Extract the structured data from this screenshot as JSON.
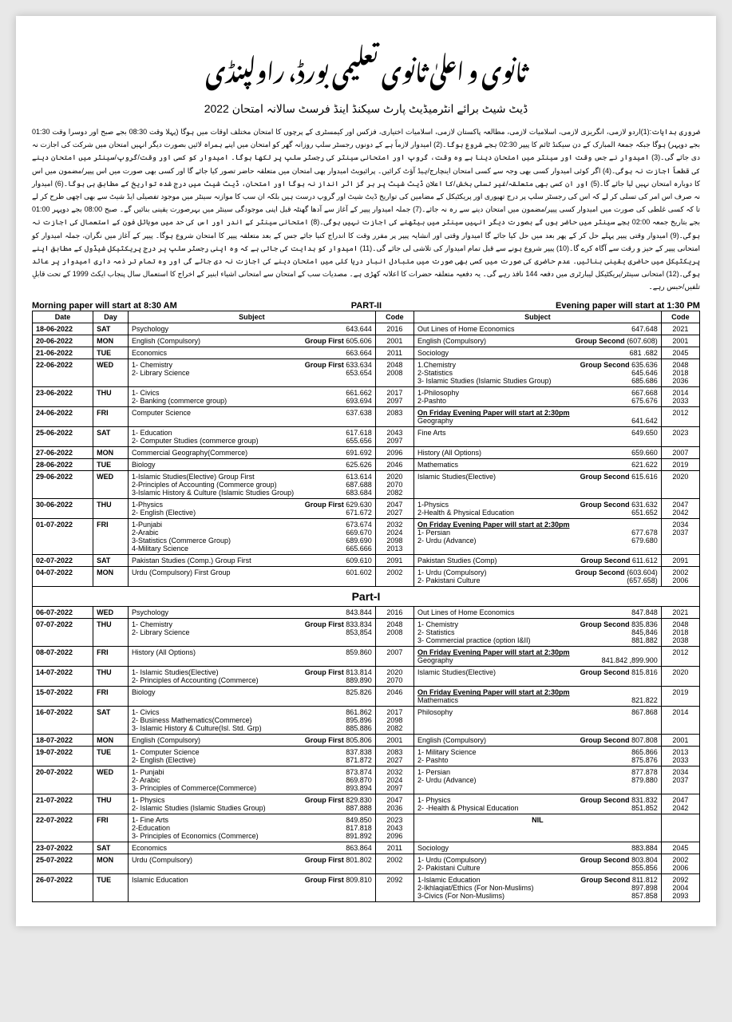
{
  "header": {
    "title_urdu": "ثانوی و اعلیٰ ثانوی تعلیمی بورڈ، راولپنڈی",
    "subtitle_urdu": "ڈیٹ شیٹ برائے انٹرمیڈیٹ پارٹ سیکنڈ اینڈ فرسٹ سالانہ امتحان 2022",
    "instructions_urdu": "ضروری ہدایات:(1)اردو لازمی، انگریزی لازمی، اسلامیات لازمی، مطالعہ پاکستان لازمی، اسلامیات اختیاری، فزکس اور کیمسٹری کے پرچوں کا امتحان مختلف اوقات میں ہوگا (پہلا وقت 08:30 بجے صبح اور دوسرا وقت 01:30 بجے دوپہر) ہوگا جبکہ جمعۃ المبارک کے دن سیکنڈ ٹائم کا پیپر 02:30 بجے شروع ہوگا۔(2) امیدوار لازماً ہے کے دونوں رجسٹر سلپ روزانہ گھر کو امتحان میں اپنے ہمراہ لائیں بصورت دیگر انہیں امتحان میں شرکت کی اجازت نہ دی جائے گی۔(3) امیدوار نے جس وقت اور سینٹر میں امتحان دینا ہے وہ وقت، گروپ اور امتحانی سینٹر کی رجسٹر سلپ پر لکھا ہوگا۔ امیدوار کو کسی اور وقت/گروپ/سینٹر میں امتحان دینے کی قطعاً اجازت نہ ہوگی۔(4) اگر کوئی امیدوار کسی بھی وجہ سے کسی امتحان اینچارج/ہیڈ آؤٹ کرائیں۔ پرائیویٹ امیدوار بھی امتحان میں متعلقہ حاضر تصور کیا جائے گا اور کسی بھی صورت میں اس پیپر/مضمون میں اس کا دوبارہ امتحان نہیں لیا جائے گا۔(5) اور ان کسی بھی متعلقہ/غیر تسلی بخش/کا اعلان ڈیٹ شیٹ پر ہر گز اثر انداز نہ ہوگا اور امتحان، ڈیٹ شیٹ میں درج شدہ تواریخ کے مطابق ہی ہوگا۔(6) امیدوار نہ صرف اس امر کی تسلی کر لے کہ اس کی رجسٹر سلپ پر درج تھیوری اور پریکٹیکل کے مضامین کی تواریخ ڈیٹ شیٹ اور گروپ درست ہیں بلکہ ان سب کا موازنہ سینٹر میں موجود تفصیلی ایڈ شیٹ سے بھی اچھی طرح کر لے تا کہ کسی غلطی کی صورت میں امیدوار کسی پیپر/مضمون میں امتحان دینے سے رہ نہ جائے۔(7) جملہ امیدوار پیپر کے آغاز سے آدھا گھنٹہ قبل اپنی موجودگی سینٹر میں بہرصورت یقینی بنائیں گے۔ صبح 08:00 بجے دوپہر 01:00 بجے بتاریخ جمعہ 02:00 بجے سینٹر میں حاضر ہوں گے بصورت دیگر انہیں سینٹر میں بیٹھنے کی اجازت نہیں ہوگی۔(8) امتحانی سینٹر کے اندر اور اس کی حد میں موبائل فون کے استعمال کی اجازت نہ ہوگی۔(9) امیدوار وقتی پیپر پہلے حل کر کے پھر بعد میں حل کیا جائے گا امیدوار وقتی اور انشایہ پیپر پر مقرر وقت کا اندراج کنیا جائے جس کے بعد متعلقہ پیپر کا امتحان شروع ہوگا۔ پیپر کے آغاز میں نگران، جملہ امیدوار کو امتحانی پیپر کے حیز و رقت سے آگاہ کرے گا۔(10) پیپر شروع ہونے سے قبل تمام امیدوار کی تلاشی لی جائے گی۔(11) امیدوار کو ہدایت کی جاتی ہے کہ وہ اپنی رجسٹر سلپ پر درج پریکٹیکل شیڈول کے مطابق اپنے پریکٹیکل میں حاضری یقینی بنائیں۔ عدم حاضری کی صورت میں کسی بھی صورت میں متبادل انبار دریا کئی میں امتحان دینے کی اجازت نہ دی جائے گی اور وہ تمام تر ذمہ داری امیدوار پر عائد ہوگی۔(12) امتحانی سینٹر/پریکٹیکل لیبارٹری میں دفعہ 144 نافذ رہے گی۔ یہ دفعیہ متعلقہ حضرات کا اعلانہ کھڑی ہے۔ مصدیات سب کے امتحان سے امتحانی اشیاء ابنیر کے اخراج کا استعمال سال پنجاب ایکٹ 1999 کے تحت قابلِ تلفیں/حبس رہے۔",
    "morning": "Morning paper will start at 8:30 AM",
    "part2": "PART-II",
    "evening": "Evening paper will start at 1:30 PM"
  },
  "cols": {
    "date": "Date",
    "day": "Day",
    "subject": "Subject",
    "code": "Code"
  },
  "part1_label": "Part-I",
  "rows_p2": [
    {
      "date": "18-06-2022",
      "day": "SAT",
      "m": [
        {
          "s": "Psychology",
          "c": "643.644"
        }
      ],
      "mc": [
        "2016"
      ],
      "e": [
        {
          "s": "Out Lines of Home Economics",
          "c": "647.648"
        }
      ],
      "ec": [
        "2021"
      ]
    },
    {
      "date": "20-06-2022",
      "day": "MON",
      "m": [
        {
          "s": "English (Compulsory)",
          "g": "Group First",
          "c": "605.606"
        }
      ],
      "mc": [
        "2001"
      ],
      "e": [
        {
          "s": "English (Compulsory)",
          "g": "Group Second",
          "c": "(607.608)"
        }
      ],
      "ec": [
        "2001"
      ]
    },
    {
      "date": "21-06-2022",
      "day": "TUE",
      "m": [
        {
          "s": "Economics",
          "c": "663.664"
        }
      ],
      "mc": [
        "2011"
      ],
      "e": [
        {
          "s": "Sociology",
          "c": "681 .682"
        }
      ],
      "ec": [
        "2045"
      ]
    },
    {
      "date": "22-06-2022",
      "day": "WED",
      "m": [
        {
          "s": "1- Chemistry",
          "g": "Group First",
          "c": "633.634"
        },
        {
          "s": "2- Library Science",
          "c": "653.654"
        }
      ],
      "mc": [
        "2048",
        "2008"
      ],
      "e": [
        {
          "s": "1.Chemistry",
          "g": "Group Second",
          "c": "635.636"
        },
        {
          "s": "2-Statistics",
          "c": "645.646"
        },
        {
          "s": "3- Islamic Studies (Islamic Studies Group)",
          "c": "685.686"
        }
      ],
      "ec": [
        "2048",
        "2018",
        "2036"
      ]
    },
    {
      "date": "23-06-2022",
      "day": "THU",
      "m": [
        {
          "s": "1- Civics",
          "c": "661.662"
        },
        {
          "s": "2- Banking  (commerce group)",
          "c": "693.694"
        }
      ],
      "mc": [
        "2017",
        "2097"
      ],
      "e": [
        {
          "s": "1-Philosophy",
          "c": "667.668"
        },
        {
          "s": "2-Pashto",
          "c": "675.676"
        }
      ],
      "ec": [
        "2014",
        "2033"
      ]
    },
    {
      "date": "24-06-2022",
      "day": "FRI",
      "m": [
        {
          "s": "Computer Science",
          "c": "637.638"
        }
      ],
      "mc": [
        "2083"
      ],
      "e": [
        {
          "u": "On Friday Evening Paper will start at 2:30pm"
        },
        {
          "s": "Geography",
          "c": "641.642"
        }
      ],
      "ec": [
        "2012"
      ]
    },
    {
      "date": "25-06-2022",
      "day": "SAT",
      "m": [
        {
          "s": "1- Education",
          "c": "617.618"
        },
        {
          "s": "2- Computer Studies (commerce group)",
          "c": "655.656"
        }
      ],
      "mc": [
        "2043",
        "2097"
      ],
      "e": [
        {
          "s": "Fine Arts",
          "c": "649.650"
        }
      ],
      "ec": [
        "2023"
      ]
    },
    {
      "date": "27-06-2022",
      "day": "MON",
      "m": [
        {
          "s": "Commercial Geography(Commerce)",
          "c": "691.692"
        }
      ],
      "mc": [
        "2096"
      ],
      "e": [
        {
          "s": "History (All Options)",
          "c": "659.660"
        }
      ],
      "ec": [
        "2007"
      ]
    },
    {
      "date": "28-06-2022",
      "day": "TUE",
      "m": [
        {
          "s": "Biology",
          "c": "625.626"
        }
      ],
      "mc": [
        "2046"
      ],
      "e": [
        {
          "s": "Mathematics",
          "c": "621.622"
        }
      ],
      "ec": [
        "2019"
      ]
    },
    {
      "date": "29-06-2022",
      "day": "WED",
      "m": [
        {
          "s": "1-Islamic Studies(Elective)  Group First",
          "c": "613.614"
        },
        {
          "s": "2-Principles of Accounting (Commerce group)",
          "c": "687.688"
        },
        {
          "s": "3-Islamic History & Culture (Islamic Studies Group)",
          "c": "683.684"
        }
      ],
      "mc": [
        "2020",
        "2070",
        "2082"
      ],
      "e": [
        {
          "s": "Islamic Studies(Elective)",
          "g": "Group Second",
          "c": "615.616"
        }
      ],
      "ec": [
        "2020"
      ]
    },
    {
      "date": "30-06-2022",
      "day": "THU",
      "m": [
        {
          "s": "1-Physics",
          "g": "Group First",
          "c": "629.630"
        },
        {
          "s": "2- English (Elective)",
          "c": "671.672"
        }
      ],
      "mc": [
        "2047",
        "2027"
      ],
      "e": [
        {
          "s": "1-Physics",
          "g": "Group Second",
          "c": "631.632"
        },
        {
          "s": "2-Health & Physical Education",
          "c": "651.652"
        }
      ],
      "ec": [
        "2047",
        "2042"
      ]
    },
    {
      "date": "01-07-2022",
      "day": "FRI",
      "m": [
        {
          "s": "1-Punjabi",
          "c": "673.674"
        },
        {
          "s": "2-Arabic",
          "c": "669.670"
        },
        {
          "s": "3-Statistics       (Commerce Group)",
          "c": "689.690"
        },
        {
          "s": "4-Military Science",
          "c": "665.666"
        }
      ],
      "mc": [
        "2032",
        "2024",
        "2098",
        "2013"
      ],
      "e": [
        {
          "u": "On Friday Evening Paper will start at 2:30pm"
        },
        {
          "s": "1- Persian",
          "c": "677.678"
        },
        {
          "s": "2- Urdu (Advance)",
          "c": "679.680"
        }
      ],
      "ec": [
        "2034",
        "2037"
      ]
    },
    {
      "date": "02-07-2022",
      "day": "SAT",
      "m": [
        {
          "s": "Pakistan Studies (Comp.)   Group First",
          "c": "609.610"
        }
      ],
      "mc": [
        "2091"
      ],
      "e": [
        {
          "s": "Pakistan Studies (Comp)",
          "g": "Group Second",
          "c": "611.612"
        }
      ],
      "ec": [
        "2091"
      ]
    },
    {
      "date": "04-07-2022",
      "day": "MON",
      "m": [
        {
          "s": "Urdu (Compulsory)   First Group",
          "c": "601.602"
        }
      ],
      "mc": [
        "2002"
      ],
      "e": [
        {
          "s": "1- Urdu (Compulsory)",
          "g": "Group Second",
          "c": "(603.604)"
        },
        {
          "s": "2- Pakistani Culture",
          "c": "(657.658)"
        }
      ],
      "ec": [
        "2002",
        "2006"
      ]
    }
  ],
  "rows_p1": [
    {
      "date": "06-07-2022",
      "day": "WED",
      "m": [
        {
          "s": "Psychology",
          "c": "843.844"
        }
      ],
      "mc": [
        "2016"
      ],
      "e": [
        {
          "s": "Out Lines of Home Economics",
          "c": "847.848"
        }
      ],
      "ec": [
        "2021"
      ]
    },
    {
      "date": "07-07-2022",
      "day": "THU",
      "m": [
        {
          "s": "1- Chemistry",
          "g": "Group First",
          "c": "833.834"
        },
        {
          "s": "2- Library Science",
          "c": "853,854"
        }
      ],
      "mc": [
        "2048",
        "2008"
      ],
      "e": [
        {
          "s": "1- Chemistry",
          "g": "Group Second",
          "c": "835.836"
        },
        {
          "s": "2- Statistics",
          "c": "845,846"
        },
        {
          "s": "3- Commercial practice  (option  I&II)",
          "c": "881.882"
        }
      ],
      "ec": [
        "2048",
        "2018",
        "2038"
      ]
    },
    {
      "date": "08-07-2022",
      "day": "FRI",
      "m": [
        {
          "s": "History (All Options)",
          "c": "859.860"
        }
      ],
      "mc": [
        "2007"
      ],
      "e": [
        {
          "u": "On Friday Evening Paper will start at 2:30pm"
        },
        {
          "s": "Geography",
          "c": "841.842 ,899.900"
        }
      ],
      "ec": [
        "2012"
      ]
    },
    {
      "date": "14-07-2022",
      "day": "THU",
      "m": [
        {
          "s": "1- Islamic Studies(Elective)",
          "g": "Group First",
          "c": "813.814"
        },
        {
          "s": "2- Principles of Accounting (Commerce)",
          "c": "889.890"
        }
      ],
      "mc": [
        "2020",
        "2070"
      ],
      "e": [
        {
          "s": "Islamic Studies(Elective)",
          "g": "Group Second",
          "c": "815.816"
        }
      ],
      "ec": [
        "2020"
      ]
    },
    {
      "date": "15-07-2022",
      "day": "FRI",
      "m": [
        {
          "s": "Biology",
          "c": "825.826"
        }
      ],
      "mc": [
        "2046"
      ],
      "e": [
        {
          "u": "On Friday Evening Paper will start at 2:30pm"
        },
        {
          "s": "Mathematics",
          "c": "821.822"
        }
      ],
      "ec": [
        "2019"
      ]
    },
    {
      "date": "16-07-2022",
      "day": "SAT",
      "m": [
        {
          "s": "1- Civics",
          "c": "861.862"
        },
        {
          "s": "2- Business Mathematics(Commerce)",
          "c": "895.896"
        },
        {
          "s": "3- Islamic History & Culture(Isl. Std. Grp)",
          "c": "885.886"
        }
      ],
      "mc": [
        "2017",
        "2098",
        "2082"
      ],
      "e": [
        {
          "s": "Philosophy",
          "c": "867.868"
        }
      ],
      "ec": [
        "2014"
      ]
    },
    {
      "date": "18-07-2022",
      "day": "MON",
      "m": [
        {
          "s": "English (Compulsory)",
          "g": "Group First",
          "c": "805.806"
        }
      ],
      "mc": [
        "2001"
      ],
      "e": [
        {
          "s": "English (Compulsory)",
          "g": "Group Second",
          "c": "807.808"
        }
      ],
      "ec": [
        "2001"
      ]
    },
    {
      "date": "19-07-2022",
      "day": "TUE",
      "m": [
        {
          "s": "1- Computer Science",
          "c": "837.838"
        },
        {
          "s": "2- English (Elective)",
          "c": "871.872"
        }
      ],
      "mc": [
        "2083",
        "2027"
      ],
      "e": [
        {
          "s": "1-  Military Science",
          "c": "865.866"
        },
        {
          "s": "2-  Pashto",
          "c": "875.876"
        }
      ],
      "ec": [
        "2013",
        "2033"
      ]
    },
    {
      "date": "20-07-2022",
      "day": "WED",
      "m": [
        {
          "s": "1- Punjabi",
          "c": "873.874"
        },
        {
          "s": "2- Arabic",
          "c": "869.870"
        },
        {
          "s": "3- Principles of Commerce(Commerce)",
          "c": "893.894"
        }
      ],
      "mc": [
        "2032",
        "2024",
        "2097"
      ],
      "e": [
        {
          "s": "1- Persian",
          "c": "877.878"
        },
        {
          "s": "2- Urdu (Advance)",
          "c": "879.880"
        }
      ],
      "ec": [
        "2034",
        "2037"
      ]
    },
    {
      "date": "21-07-2022",
      "day": "THU",
      "m": [
        {
          "s": "1- Physics",
          "g": "Group First",
          "c": "829.830"
        },
        {
          "s": "2- Islamic Studies (Islamic Studies Group)",
          "c": "887.888"
        }
      ],
      "mc": [
        "2047",
        "2036"
      ],
      "e": [
        {
          "s": "1-   Physics",
          "g": "Group Second",
          "c": "831.832"
        },
        {
          "s": "2-   -Health & Physical Education",
          "c": "851.852"
        }
      ],
      "ec": [
        "2047",
        "2042"
      ]
    },
    {
      "date": "22-07-2022",
      "day": "FRI",
      "m": [
        {
          "s": "1- Fine Arts",
          "c": "849.850"
        },
        {
          "s": "2-Education",
          "c": "817.818"
        },
        {
          "s": "3- Principles of Economics (Commerce)",
          "c": "891.892"
        }
      ],
      "mc": [
        "2023",
        "2043",
        "2096"
      ],
      "e": [
        {
          "nil": "NIL"
        }
      ],
      "ec": [
        ""
      ]
    },
    {
      "date": "23-07-2022",
      "day": "SAT",
      "m": [
        {
          "s": "Economics",
          "c": "863.864"
        }
      ],
      "mc": [
        "2011"
      ],
      "e": [
        {
          "s": "Sociology",
          "c": "883.884"
        }
      ],
      "ec": [
        "2045"
      ]
    },
    {
      "date": "25-07-2022",
      "day": "MON",
      "m": [
        {
          "s": "Urdu (Compulsory)",
          "g": "Group First",
          "c": "801.802"
        }
      ],
      "mc": [
        "2002"
      ],
      "e": [
        {
          "s": "1- Urdu (Compulsory)",
          "g": "Group Second",
          "c": "803.804"
        },
        {
          "s": "2- Pakistani Culture",
          "c": "855.856"
        }
      ],
      "ec": [
        "2002",
        "2006"
      ]
    },
    {
      "date": "26-07-2022",
      "day": "TUE",
      "m": [
        {
          "s": "Islamic Education",
          "g": "Group First",
          "c": "809.810"
        }
      ],
      "mc": [
        "2092"
      ],
      "e": [
        {
          "s": "1-Islamic Education",
          "g": "Group Second",
          "c": "811.812"
        },
        {
          "s": "2-Ikhlaqiat/Ethics (For Non-Muslims)",
          "c": "897.898"
        },
        {
          "s": "3-Civics (For Non-Muslims)",
          "c": "857.858"
        }
      ],
      "ec": [
        "2092",
        "2004",
        "2093"
      ]
    }
  ]
}
